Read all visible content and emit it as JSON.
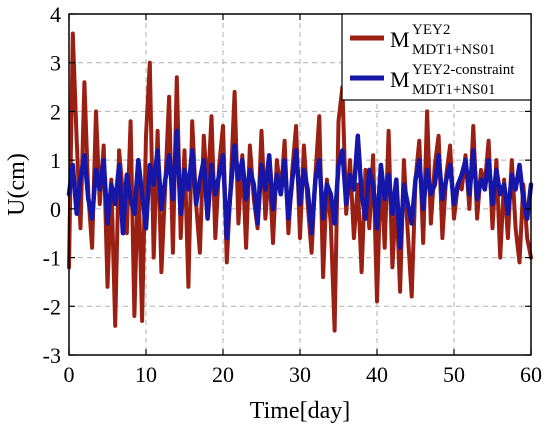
{
  "chart_data": {
    "type": "line",
    "xlabel": "Time[day]",
    "ylabel": "U(cm)",
    "xlim": [
      0,
      60
    ],
    "ylim": [
      -3,
      4
    ],
    "xticks": [
      0,
      10,
      20,
      30,
      40,
      50,
      60
    ],
    "yticks": [
      -3,
      -2,
      -1,
      0,
      1,
      2,
      3,
      4
    ],
    "xtick_labels": [
      "0",
      "10",
      "20",
      "30",
      "40",
      "50",
      "60"
    ],
    "ytick_labels": [
      "-3",
      "-2",
      "-1",
      "0",
      "1",
      "2",
      "3",
      "4"
    ],
    "grid": true,
    "legend_position": "top-right",
    "series": [
      {
        "legend_main": "M",
        "legend_sup": "YEY2",
        "legend_sub": "MDT1+NS01",
        "color": "#9b2014",
        "x": [
          0,
          0.5,
          1,
          1.5,
          2,
          2.5,
          3,
          3.5,
          4,
          4.5,
          5,
          5.5,
          6,
          6.5,
          7,
          7.5,
          8,
          8.5,
          9,
          9.5,
          10,
          10.5,
          11,
          11.5,
          12,
          12.5,
          13,
          13.5,
          14,
          14.5,
          15,
          15.5,
          16,
          16.5,
          17,
          17.5,
          18,
          18.5,
          19,
          19.5,
          20,
          20.5,
          21,
          21.5,
          22,
          22.5,
          23,
          23.5,
          24,
          24.5,
          25,
          25.5,
          26,
          26.5,
          27,
          27.5,
          28,
          28.5,
          29,
          29.5,
          30,
          30.5,
          31,
          31.5,
          32,
          32.5,
          33,
          33.5,
          34,
          34.5,
          35,
          35.5,
          36,
          36.5,
          37,
          37.5,
          38,
          38.5,
          39,
          39.5,
          40,
          40.5,
          41,
          41.5,
          42,
          42.5,
          43,
          43.5,
          44,
          44.5,
          45,
          45.5,
          46,
          46.5,
          47,
          47.5,
          48,
          48.5,
          49,
          49.5,
          50,
          50.5,
          51,
          51.5,
          52,
          52.5,
          53,
          53.5,
          54,
          54.5,
          55,
          55.5,
          56,
          56.5,
          57,
          57.5,
          58,
          58.5,
          59,
          59.5,
          60
        ],
        "values": [
          -1.2,
          3.6,
          1.4,
          -0.4,
          2.6,
          0.3,
          -0.8,
          2.0,
          0.1,
          1.3,
          -1.6,
          0.6,
          -2.4,
          1.2,
          0.3,
          -0.5,
          1.8,
          -2.2,
          0.8,
          -2.3,
          1.5,
          3.0,
          -1.0,
          1.6,
          -1.3,
          0.5,
          2.3,
          -0.9,
          2.7,
          -0.6,
          1.2,
          -1.6,
          1.8,
          0.1,
          -0.9,
          1.5,
          0.3,
          1.9,
          -0.6,
          0.9,
          1.7,
          -1.1,
          0.5,
          2.4,
          -0.3,
          1.1,
          -0.8,
          1.3,
          0.2,
          -0.4,
          1.6,
          -0.2,
          0.9,
          -0.7,
          1.0,
          0.3,
          1.4,
          -0.5,
          0.8,
          1.7,
          -0.6,
          1.3,
          0.1,
          -0.9,
          0.7,
          1.9,
          -1.4,
          0.6,
          -0.3,
          -2.5,
          1.8,
          2.5,
          -0.1,
          1.0,
          -0.6,
          0.5,
          -1.3,
          0.8,
          -0.4,
          1.1,
          -1.9,
          0.9,
          -0.8,
          1.6,
          -1.2,
          0.3,
          -1.7,
          1.0,
          -0.5,
          -1.8,
          0.6,
          1.4,
          -0.7,
          2.0,
          -0.3,
          0.9,
          1.5,
          -0.6,
          0.7,
          1.3,
          -0.2,
          0.5,
          0.4,
          1.1,
          0.0,
          1.7,
          -0.2,
          0.8,
          0.5,
          1.4,
          -0.4,
          1.0,
          -1.0,
          0.6,
          -0.6,
          1.0,
          -0.4,
          -1.1,
          0.5,
          -0.6,
          -1.0
        ]
      },
      {
        "legend_main": "M",
        "legend_sup": "YEY2-constraint",
        "legend_sub": "MDT1+NS01",
        "color": "#1616a8",
        "x": [
          0,
          0.5,
          1,
          1.5,
          2,
          2.5,
          3,
          3.5,
          4,
          4.5,
          5,
          5.5,
          6,
          6.5,
          7,
          7.5,
          8,
          8.5,
          9,
          9.5,
          10,
          10.5,
          11,
          11.5,
          12,
          12.5,
          13,
          13.5,
          14,
          14.5,
          15,
          15.5,
          16,
          16.5,
          17,
          17.5,
          18,
          18.5,
          19,
          19.5,
          20,
          20.5,
          21,
          21.5,
          22,
          22.5,
          23,
          23.5,
          24,
          24.5,
          25,
          25.5,
          26,
          26.5,
          27,
          27.5,
          28,
          28.5,
          29,
          29.5,
          30,
          30.5,
          31,
          31.5,
          32,
          32.5,
          33,
          33.5,
          34,
          34.5,
          35,
          35.5,
          36,
          36.5,
          37,
          37.5,
          38,
          38.5,
          39,
          39.5,
          40,
          40.5,
          41,
          41.5,
          42,
          42.5,
          43,
          43.5,
          44,
          44.5,
          45,
          45.5,
          46,
          46.5,
          47,
          47.5,
          48,
          48.5,
          49,
          49.5,
          50,
          50.5,
          51,
          51.5,
          52,
          52.5,
          53,
          53.5,
          54,
          54.5,
          55,
          55.5,
          56,
          56.5,
          57,
          57.5,
          58,
          58.5,
          59,
          59.5,
          60
        ],
        "values": [
          0.3,
          0.9,
          -0.1,
          0.6,
          1.1,
          0.2,
          -0.2,
          0.8,
          0.4,
          1.0,
          -0.3,
          0.5,
          0.1,
          0.9,
          -0.5,
          0.7,
          0.2,
          -0.1,
          1.0,
          0.3,
          -0.4,
          0.9,
          0.5,
          1.2,
          0.0,
          0.6,
          1.1,
          0.2,
          1.6,
          -0.1,
          0.8,
          0.4,
          1.2,
          0.1,
          0.6,
          1.0,
          -0.2,
          0.9,
          0.3,
          0.7,
          1.1,
          -0.6,
          0.4,
          1.3,
          0.6,
          1.0,
          0.2,
          0.8,
          0.5,
          -0.3,
          0.9,
          0.4,
          1.1,
          0.0,
          0.7,
          0.3,
          1.0,
          -0.2,
          0.6,
          1.2,
          0.1,
          0.8,
          0.4,
          -0.5,
          0.6,
          1.0,
          -0.2,
          0.5,
          0.3,
          -0.3,
          0.9,
          1.2,
          0.1,
          0.7,
          0.4,
          1.5,
          0.3,
          -0.2,
          0.8,
          0.5,
          -0.4,
          0.9,
          0.2,
          0.7,
          -0.1,
          0.6,
          -0.8,
          0.5,
          0.1,
          -0.3,
          0.6,
          1.0,
          0.0,
          0.8,
          0.3,
          0.5,
          1.1,
          0.2,
          0.6,
          0.9,
          0.1,
          0.5,
          0.7,
          1.0,
          0.3,
          1.2,
          0.2,
          0.6,
          0.4,
          1.0,
          0.1,
          0.8,
          0.3,
          0.5,
          -0.1,
          0.7,
          0.4,
          0.9,
          0.2,
          -0.2,
          0.5
        ]
      }
    ]
  }
}
